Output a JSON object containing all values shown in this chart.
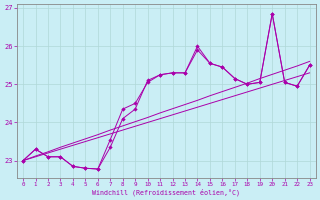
{
  "xlabel": "Windchill (Refroidissement éolien,°C)",
  "background_color": "#caeef5",
  "line_color": "#aa00aa",
  "grid_color": "#b0d8d8",
  "x": [
    0,
    1,
    2,
    3,
    4,
    5,
    6,
    7,
    8,
    9,
    10,
    11,
    12,
    13,
    14,
    15,
    16,
    17,
    18,
    19,
    20,
    21,
    22,
    23
  ],
  "y_main1": [
    23.0,
    23.3,
    23.1,
    23.1,
    22.85,
    22.8,
    22.78,
    23.55,
    24.35,
    24.5,
    25.05,
    25.25,
    25.3,
    25.3,
    26.0,
    25.55,
    25.45,
    25.15,
    25.0,
    25.05,
    26.85,
    25.05,
    24.95,
    25.5
  ],
  "y_main2": [
    23.0,
    23.3,
    23.1,
    23.1,
    22.85,
    22.8,
    22.78,
    23.35,
    24.1,
    24.35,
    25.1,
    25.25,
    25.3,
    25.3,
    25.9,
    25.55,
    25.45,
    25.15,
    25.0,
    25.05,
    26.85,
    25.05,
    24.95,
    25.5
  ],
  "y_reg1": [
    23.0,
    23.12,
    23.23,
    23.35,
    23.46,
    23.57,
    23.68,
    23.8,
    23.91,
    24.02,
    24.13,
    24.25,
    24.36,
    24.47,
    24.58,
    24.7,
    24.81,
    24.92,
    25.03,
    25.15,
    25.26,
    25.37,
    25.48,
    25.6
  ],
  "y_reg2": [
    23.0,
    23.1,
    23.2,
    23.3,
    23.4,
    23.5,
    23.6,
    23.7,
    23.8,
    23.9,
    24.0,
    24.1,
    24.2,
    24.3,
    24.4,
    24.5,
    24.6,
    24.7,
    24.8,
    24.9,
    25.0,
    25.1,
    25.2,
    25.3
  ],
  "ylim": [
    22.55,
    27.1
  ],
  "yticks": [
    23,
    24,
    25,
    26,
    27
  ],
  "xticks": [
    0,
    1,
    2,
    3,
    4,
    5,
    6,
    7,
    8,
    9,
    10,
    11,
    12,
    13,
    14,
    15,
    16,
    17,
    18,
    19,
    20,
    21,
    22,
    23
  ],
  "xtick_labels": [
    "0",
    "1",
    "2",
    "3",
    "4",
    "5",
    "6",
    "7",
    "8",
    "9",
    "10",
    "11",
    "12",
    "13",
    "14",
    "15",
    "16",
    "17",
    "18",
    "19",
    "20",
    "21",
    "22",
    "23"
  ]
}
